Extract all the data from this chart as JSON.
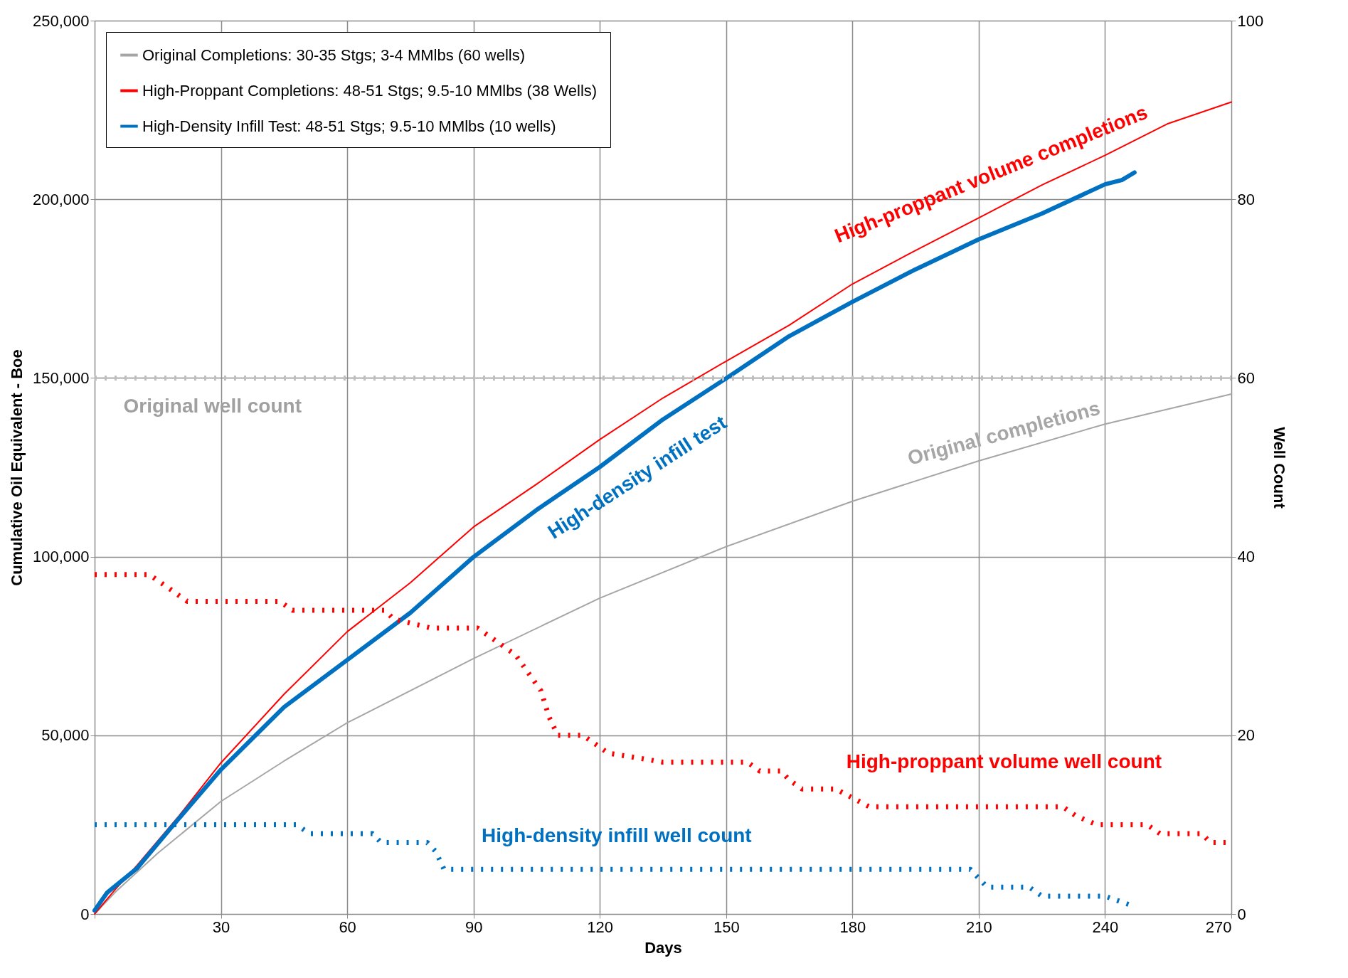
{
  "chart_data": {
    "type": "line",
    "xlabel": "Days",
    "ylabel": "Cumulative Oil Equivalent - Boe",
    "y2label": "Well Count",
    "xlim": [
      0,
      270
    ],
    "xticks": [
      {
        "value": 0,
        "label": null
      },
      30,
      60,
      90,
      120,
      150,
      180,
      210,
      240,
      270
    ],
    "ylim": [
      0,
      250000
    ],
    "yticks": [
      0,
      {
        "value": 50000,
        "label": "50,000"
      },
      {
        "value": 100000,
        "label": "100,000"
      },
      {
        "value": 150000,
        "label": "150,000"
      },
      {
        "value": 200000,
        "label": "200,000"
      },
      {
        "value": 250000,
        "label": "250,000"
      }
    ],
    "y2lim": [
      0,
      100
    ],
    "y2ticks": [
      0,
      20,
      40,
      60,
      80,
      100
    ],
    "grid": true,
    "legend": "top left",
    "series": [
      {
        "name": "Original Completions: 30-35 Stgs; 3-4 MMlbs (60 wells)",
        "color": "#a6a6a6",
        "x": [
          0,
          5,
          15,
          30,
          45,
          60,
          90,
          120,
          150,
          180,
          210,
          240,
          270
        ],
        "values": [
          0,
          6200,
          17000,
          31500,
          42800,
          53500,
          71500,
          88400,
          102800,
          115500,
          126800,
          137100,
          145500
        ]
      },
      {
        "name": "High-Proppant Completions: 48-51 Stgs; 9.5-10 MMlbs (38 Wells)",
        "color": "#ff0000",
        "x": [
          0,
          5,
          10,
          20,
          30,
          45,
          60,
          75,
          90,
          105,
          120,
          135,
          150,
          165,
          180,
          195,
          210,
          225,
          240,
          255,
          270
        ],
        "values": [
          0,
          7000,
          13500,
          27400,
          42300,
          61500,
          79000,
          92700,
          108300,
          120300,
          132800,
          144400,
          154700,
          164800,
          176300,
          185700,
          194800,
          204000,
          212300,
          221200,
          227200
        ]
      },
      {
        "name": "High-Density Infill Test: 48-51 Stgs; 9.5-10 MMlbs (10 wells)",
        "color": "#0070c0",
        "x": [
          0,
          3,
          10,
          20,
          30,
          45,
          60,
          75,
          90,
          105,
          120,
          135,
          150,
          165,
          180,
          195,
          210,
          225,
          240,
          244,
          247
        ],
        "values": [
          1000,
          6000,
          12700,
          26700,
          40400,
          57900,
          71100,
          84300,
          99900,
          113100,
          125100,
          138400,
          149900,
          161700,
          171300,
          180400,
          188800,
          196000,
          204200,
          205400,
          207500
        ]
      },
      {
        "color": "#bfbfbf",
        "axis": "y2",
        "line_style": "dotted",
        "x": [
          0,
          270
        ],
        "values": [
          60,
          60
        ]
      },
      {
        "color": "#ff0000",
        "axis": "y2",
        "line_style": "dotted",
        "x": [
          0,
          13,
          16,
          19,
          22,
          44,
          47,
          69,
          71,
          80,
          91,
          94,
          97,
          100,
          103,
          106,
          108,
          110,
          116,
          119,
          122,
          135,
          155,
          158,
          163,
          165,
          168,
          176,
          180,
          184,
          230,
          233,
          238,
          250,
          253,
          263,
          265,
          270
        ],
        "values": [
          38,
          38,
          37,
          36,
          35,
          35,
          34,
          34,
          33,
          32,
          32,
          31,
          30,
          29,
          27,
          25,
          22,
          20,
          20,
          19,
          18,
          17,
          17,
          16,
          16,
          15,
          14,
          14,
          13,
          12,
          12,
          11,
          10,
          10,
          9,
          9,
          8,
          8
        ]
      },
      {
        "color": "#0070c0",
        "axis": "y2",
        "line_style": "dotted",
        "x": [
          0,
          48,
          51,
          66,
          68,
          79,
          81,
          83,
          208,
          210,
          212,
          222,
          225,
          240,
          243,
          246
        ],
        "values": [
          10,
          10,
          9,
          9,
          8,
          8,
          7,
          5,
          5,
          4,
          3,
          3,
          2,
          2,
          1.5,
          1
        ]
      }
    ],
    "annotations": [
      "High-proppant volume completions",
      "High-density infill test",
      "Original completions",
      "Original well count",
      "High-proppant volume well count",
      "High-density infill well count"
    ]
  }
}
